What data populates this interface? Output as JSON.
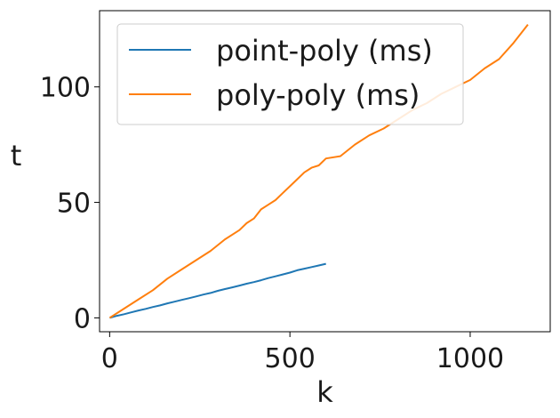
{
  "chart_data": {
    "type": "line",
    "title": "",
    "xlabel": "k",
    "ylabel": "t",
    "xlim": [
      -28,
      1222
    ],
    "ylim": [
      -6,
      133
    ],
    "xticks": [
      0,
      500,
      1000
    ],
    "yticks": [
      0,
      50,
      100
    ],
    "grid": false,
    "legend_position": "top-left",
    "series": [
      {
        "name": "point-poly (ms)",
        "color": "#1f77b4",
        "x": [
          0,
          20,
          40,
          60,
          80,
          100,
          120,
          140,
          160,
          180,
          200,
          220,
          240,
          260,
          280,
          300,
          320,
          340,
          360,
          380,
          400,
          420,
          440,
          460,
          480,
          500,
          520,
          540,
          560,
          580,
          600
        ],
        "y": [
          0,
          0.9,
          1.6,
          2.4,
          3.2,
          3.9,
          4.7,
          5.4,
          6.3,
          7.0,
          7.8,
          8.5,
          9.3,
          10.1,
          10.8,
          11.7,
          12.5,
          13.2,
          14.0,
          14.8,
          15.5,
          16.3,
          17.2,
          18.0,
          18.8,
          19.6,
          20.6,
          21.3,
          22.0,
          22.7,
          23.4
        ]
      },
      {
        "name": "poly-poly (ms)",
        "color": "#ff7f0e",
        "x": [
          0,
          40,
          80,
          120,
          160,
          200,
          240,
          280,
          320,
          360,
          380,
          400,
          420,
          440,
          460,
          480,
          500,
          520,
          540,
          560,
          580,
          600,
          640,
          680,
          720,
          760,
          800,
          840,
          880,
          920,
          960,
          1000,
          1040,
          1080,
          1120,
          1160
        ],
        "y": [
          0,
          4,
          8,
          12,
          17,
          21,
          25,
          29,
          34,
          38,
          41,
          43,
          47,
          49,
          51,
          54,
          57,
          60,
          63,
          65,
          66,
          69,
          70,
          75,
          79,
          82,
          86,
          90,
          93,
          97,
          100,
          103,
          108,
          112,
          119,
          127
        ]
      }
    ]
  }
}
